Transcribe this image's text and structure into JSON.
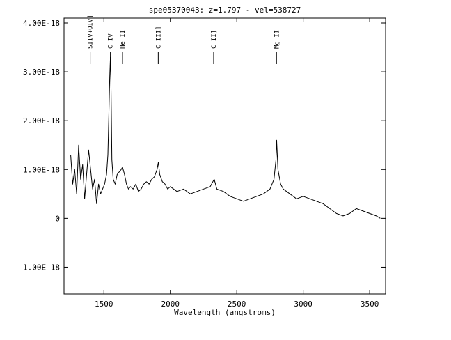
{
  "chart_data": {
    "type": "line",
    "title": "spe05370043: z=1.797 - vel=538727",
    "xlabel": "Wavelength (angstroms)",
    "ylabel": "",
    "xlim": [
      1200,
      3620
    ],
    "ylim": [
      -1.55e-18,
      4.1e-18
    ],
    "x_ticks": [
      {
        "value": 1500,
        "label": "1500"
      },
      {
        "value": 2000,
        "label": "2000"
      },
      {
        "value": 2500,
        "label": "2500"
      },
      {
        "value": 3000,
        "label": "3000"
      },
      {
        "value": 3500,
        "label": "3500"
      }
    ],
    "y_ticks": [
      {
        "value": 4e-18,
        "label": "4.00E-18"
      },
      {
        "value": 3e-18,
        "label": "3.00E-18"
      },
      {
        "value": 2e-18,
        "label": "2.00E-18"
      },
      {
        "value": 1e-18,
        "label": "1.00E-18"
      },
      {
        "value": 0,
        "label": "0"
      },
      {
        "value": -1e-18,
        "label": "-1.00E-18"
      }
    ],
    "emission_lines": [
      {
        "label": "SIIV+OIV]",
        "x": 1397
      },
      {
        "label": "C IV",
        "x": 1549
      },
      {
        "label": "He II",
        "x": 1640
      },
      {
        "label": "C III]",
        "x": 1909
      },
      {
        "label": "C II]",
        "x": 2326
      },
      {
        "label": "Mg II",
        "x": 2799
      }
    ],
    "series": [
      {
        "x": [
          1250,
          1265,
          1280,
          1295,
          1310,
          1325,
          1340,
          1355,
          1370,
          1385,
          1400,
          1415,
          1430,
          1445,
          1460,
          1475,
          1490,
          1505,
          1520,
          1530,
          1538,
          1544,
          1549,
          1554,
          1560,
          1570,
          1585,
          1600,
          1615,
          1630,
          1640,
          1655,
          1670,
          1685,
          1700,
          1720,
          1740,
          1760,
          1780,
          1800,
          1820,
          1840,
          1860,
          1880,
          1900,
          1910,
          1920,
          1940,
          1960,
          1980,
          2000,
          2050,
          2100,
          2150,
          2200,
          2250,
          2300,
          2330,
          2350,
          2400,
          2450,
          2500,
          2550,
          2600,
          2650,
          2700,
          2750,
          2780,
          2795,
          2800,
          2810,
          2830,
          2850,
          2900,
          2950,
          3000,
          3050,
          3100,
          3150,
          3200,
          3250,
          3300,
          3350,
          3400,
          3450,
          3500,
          3550,
          3580
        ],
        "y": [
          1.3e-18,
          7e-19,
          1e-18,
          5e-19,
          1.5e-18,
          8e-19,
          1.1e-18,
          4e-19,
          9e-19,
          1.4e-18,
          1e-18,
          6e-19,
          8e-19,
          3e-19,
          7e-19,
          5e-19,
          6e-19,
          7e-19,
          9e-19,
          1.3e-18,
          2.2e-18,
          2.9e-18,
          3.3e-18,
          2.6e-18,
          1.2e-18,
          8e-19,
          7e-19,
          9e-19,
          9.5e-19,
          1e-18,
          1.05e-18,
          9e-19,
          7e-19,
          6e-19,
          6.5e-19,
          6e-19,
          7e-19,
          5.5e-19,
          6e-19,
          7e-19,
          7.5e-19,
          7e-19,
          8e-19,
          8.5e-19,
          1e-18,
          1.15e-18,
          9e-19,
          7.5e-19,
          7e-19,
          6e-19,
          6.5e-19,
          5.5e-19,
          6e-19,
          5e-19,
          5.5e-19,
          6e-19,
          6.5e-19,
          8e-19,
          6e-19,
          5.5e-19,
          4.5e-19,
          4e-19,
          3.5e-19,
          4e-19,
          4.5e-19,
          5e-19,
          6e-19,
          8e-19,
          1.2e-18,
          1.6e-18,
          1e-18,
          7e-19,
          6e-19,
          5e-19,
          4e-19,
          4.5e-19,
          4e-19,
          3.5e-19,
          3e-19,
          2e-19,
          1e-19,
          5e-20,
          1e-19,
          2e-19,
          1.5e-19,
          1e-19,
          5e-20,
          0.0
        ]
      }
    ]
  }
}
